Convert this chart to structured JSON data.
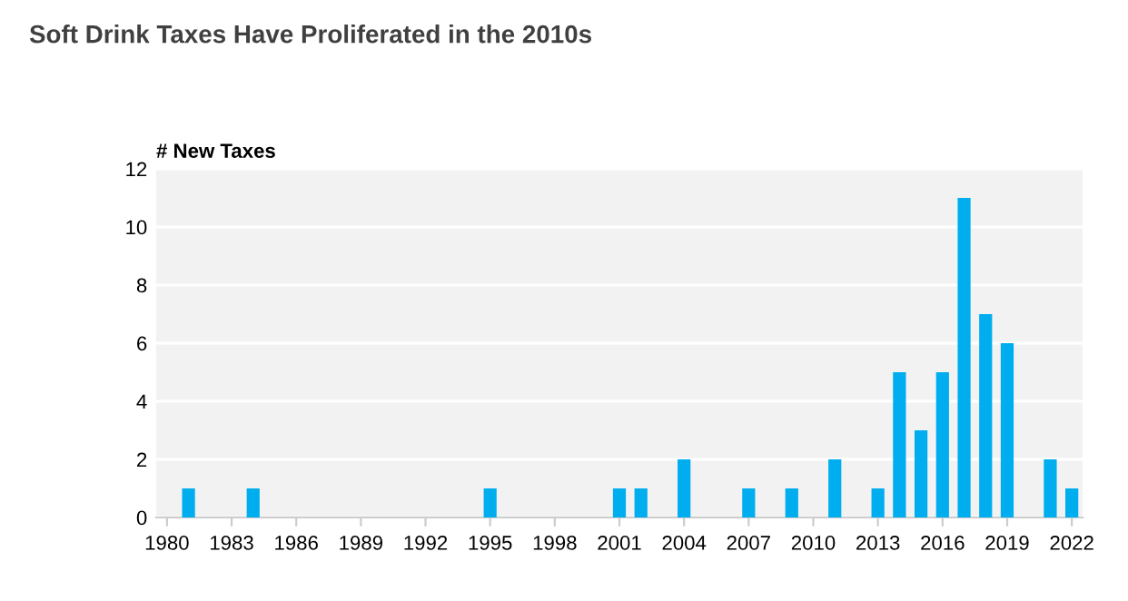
{
  "chart_data": {
    "type": "bar",
    "title": "Soft Drink Taxes Have Proliferated in the 2010s",
    "ylabel": "# New Taxes",
    "categories": [
      "1980",
      null,
      null,
      "1983",
      null,
      null,
      "1986",
      null,
      null,
      "1989",
      null,
      null,
      "1992",
      null,
      null,
      "1995",
      null,
      null,
      "1998",
      null,
      null,
      "2001",
      null,
      null,
      "2004",
      null,
      null,
      "2007",
      null,
      null,
      "2010",
      null,
      null,
      "2013",
      null,
      null,
      "2016",
      null,
      null,
      "2019",
      null,
      null,
      "2022"
    ],
    "values": [
      0,
      1,
      0,
      0,
      1,
      0,
      0,
      0,
      0,
      0,
      0,
      0,
      0,
      0,
      0,
      1,
      0,
      0,
      0,
      0,
      0,
      1,
      1,
      0,
      2,
      0,
      0,
      1,
      0,
      1,
      0,
      2,
      0,
      1,
      5,
      3,
      5,
      11,
      7,
      6,
      0,
      2,
      1
    ],
    "color": "#00aeef",
    "ylim": [
      0,
      12
    ],
    "yticks": [
      0,
      2,
      4,
      6,
      8,
      10,
      12
    ],
    "grid": "y"
  }
}
